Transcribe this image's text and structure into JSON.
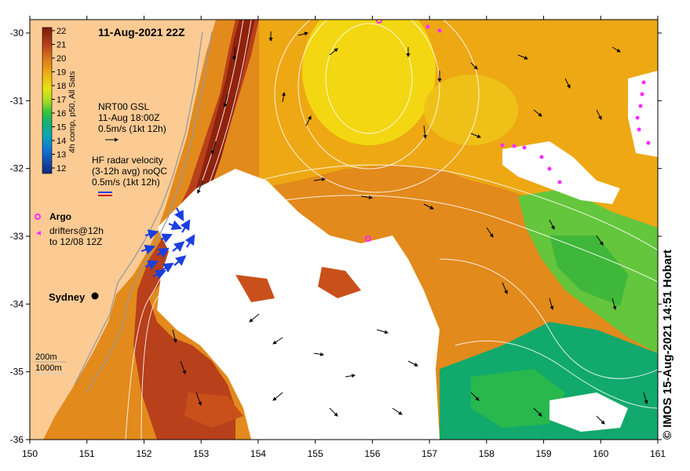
{
  "title": "11-Aug-2021 22Z",
  "credit": "© IMOS 15-Aug-2021 14:51 Hobart",
  "colorbar": {
    "label": "4h comp, p50, All Sats",
    "ticks": [
      "22",
      "21",
      "20",
      "19",
      "18",
      "17",
      "16",
      "15",
      "14",
      "13",
      "12"
    ],
    "min": 12,
    "max": 22
  },
  "legend": {
    "gsl_line1": "NRT00 GSL",
    "gsl_line2": "11-Aug 18:00Z",
    "gsl_line3": "0.5m/s (1kt 12h)",
    "hf_line1": "HF radar velocity",
    "hf_line2": "(3-12h avg) noQC",
    "hf_line3": "0.5m/s (1kt 12h)",
    "argo_label": "Argo",
    "drifters_line1": "drifters@12h",
    "drifters_line2": "to 12/08 12Z",
    "depth_200": "200m",
    "depth_1000": "1000m"
  },
  "place": {
    "name": "Sydney"
  },
  "x_axis": {
    "ticks": [
      "150",
      "151",
      "152",
      "153",
      "154",
      "155",
      "156",
      "157",
      "158",
      "159",
      "160",
      "161"
    ]
  },
  "y_axis": {
    "ticks": [
      "-30",
      "-31",
      "-32",
      "-33",
      "-34",
      "-35",
      "-36"
    ]
  },
  "colors": {
    "land": "#fccb94",
    "warm_core": "#9a2a0e",
    "hot": "#c9501a",
    "orange": "#e28a1c",
    "amber": "#eda814",
    "yellow": "#f2d712",
    "green": "#3fb73a",
    "teal": "#12a96c",
    "hf_arrow": "#1a3fe0",
    "drifter": "#ff2aff"
  }
}
